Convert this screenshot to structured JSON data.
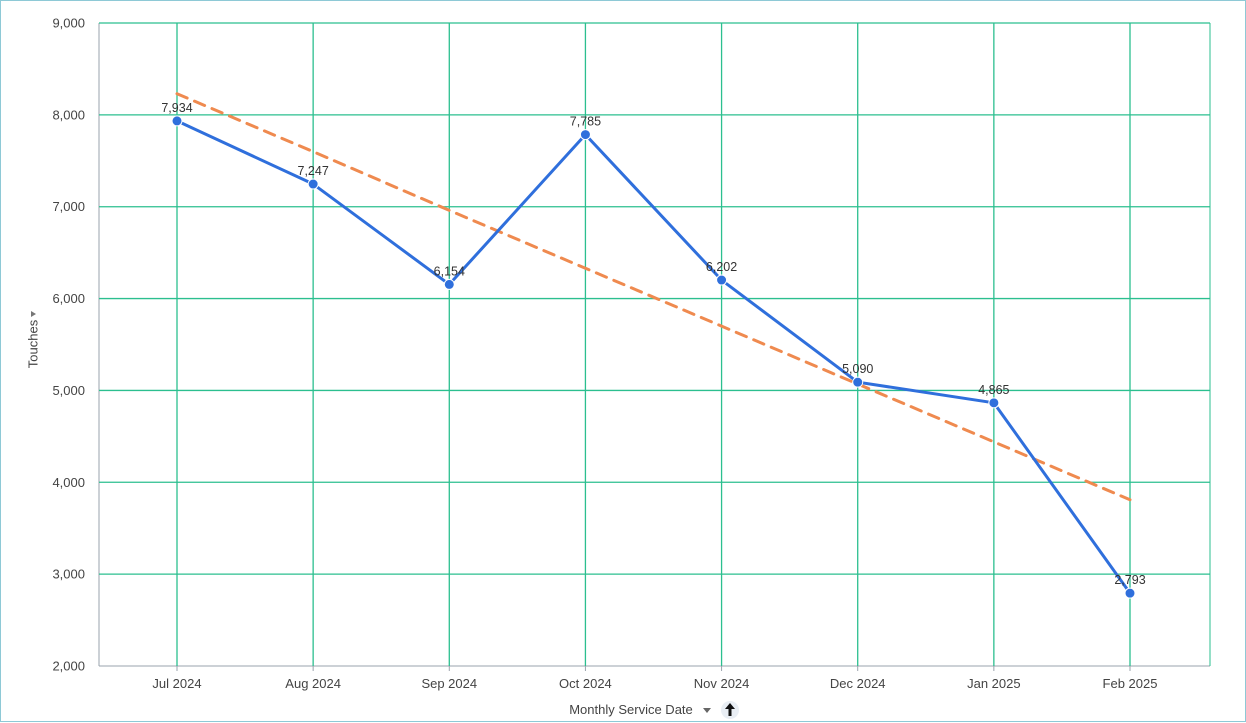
{
  "chart_data": {
    "type": "line",
    "categories": [
      "Jul 2024",
      "Aug 2024",
      "Sep 2024",
      "Oct 2024",
      "Nov 2024",
      "Dec 2024",
      "Jan 2025",
      "Feb 2025"
    ],
    "series": [
      {
        "name": "",
        "values": [
          7934,
          7247,
          6154,
          7785,
          6202,
          5090,
          4865,
          2793
        ],
        "color": "#2f6fdc",
        "style": "solid",
        "markers": true
      },
      {
        "name": "",
        "values": [
          8230,
          7600,
          6960,
          6330,
          5700,
          5070,
          4440,
          3810
        ],
        "color": "#ef8a4f",
        "style": "dashed",
        "markers": false,
        "trendline": true
      }
    ],
    "data_labels": [
      "7,934",
      "7,247",
      "6,154",
      "7,785",
      "6,202",
      "5,090",
      "4,865",
      "2,793"
    ],
    "ylim": [
      2000,
      9000
    ],
    "y_ticks": [
      2000,
      3000,
      4000,
      5000,
      6000,
      7000,
      8000,
      9000
    ],
    "y_tick_labels": [
      "2,000",
      "3,000",
      "4,000",
      "5,000",
      "6,000",
      "7,000",
      "8,000",
      "9,000"
    ],
    "xlabel": "Monthly Service Date",
    "ylabel": "Touches",
    "grid": true,
    "grid_color": "#2bbf8f"
  },
  "axis_controls": {
    "x_dropdown_icon": "caret-down-icon",
    "x_sort_icon": "arrow-up-icon",
    "y_dropdown_icon": "caret-down-icon"
  }
}
